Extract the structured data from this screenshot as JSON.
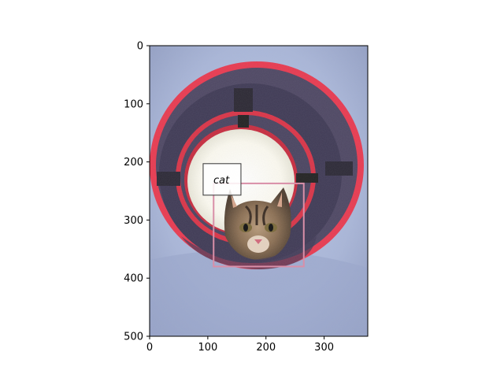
{
  "image": {
    "description_subject": "cat",
    "data_width": 375,
    "data_height": 500
  },
  "axes": {
    "x_ticks": [
      0,
      100,
      200,
      300
    ],
    "y_ticks": [
      0,
      100,
      200,
      300,
      400,
      500
    ],
    "xlim": [
      0,
      375
    ],
    "ylim": [
      500,
      0
    ]
  },
  "detections": [
    {
      "label": "cat",
      "box": {
        "x0": 110,
        "y0": 237,
        "x1": 265,
        "y1": 380
      },
      "label_anchor": {
        "x": 92,
        "y": 203
      },
      "color": "#d98fa8"
    }
  ],
  "colors": {
    "background": "#ffffff",
    "axis": "#000000",
    "label_box_border": "#333333"
  }
}
